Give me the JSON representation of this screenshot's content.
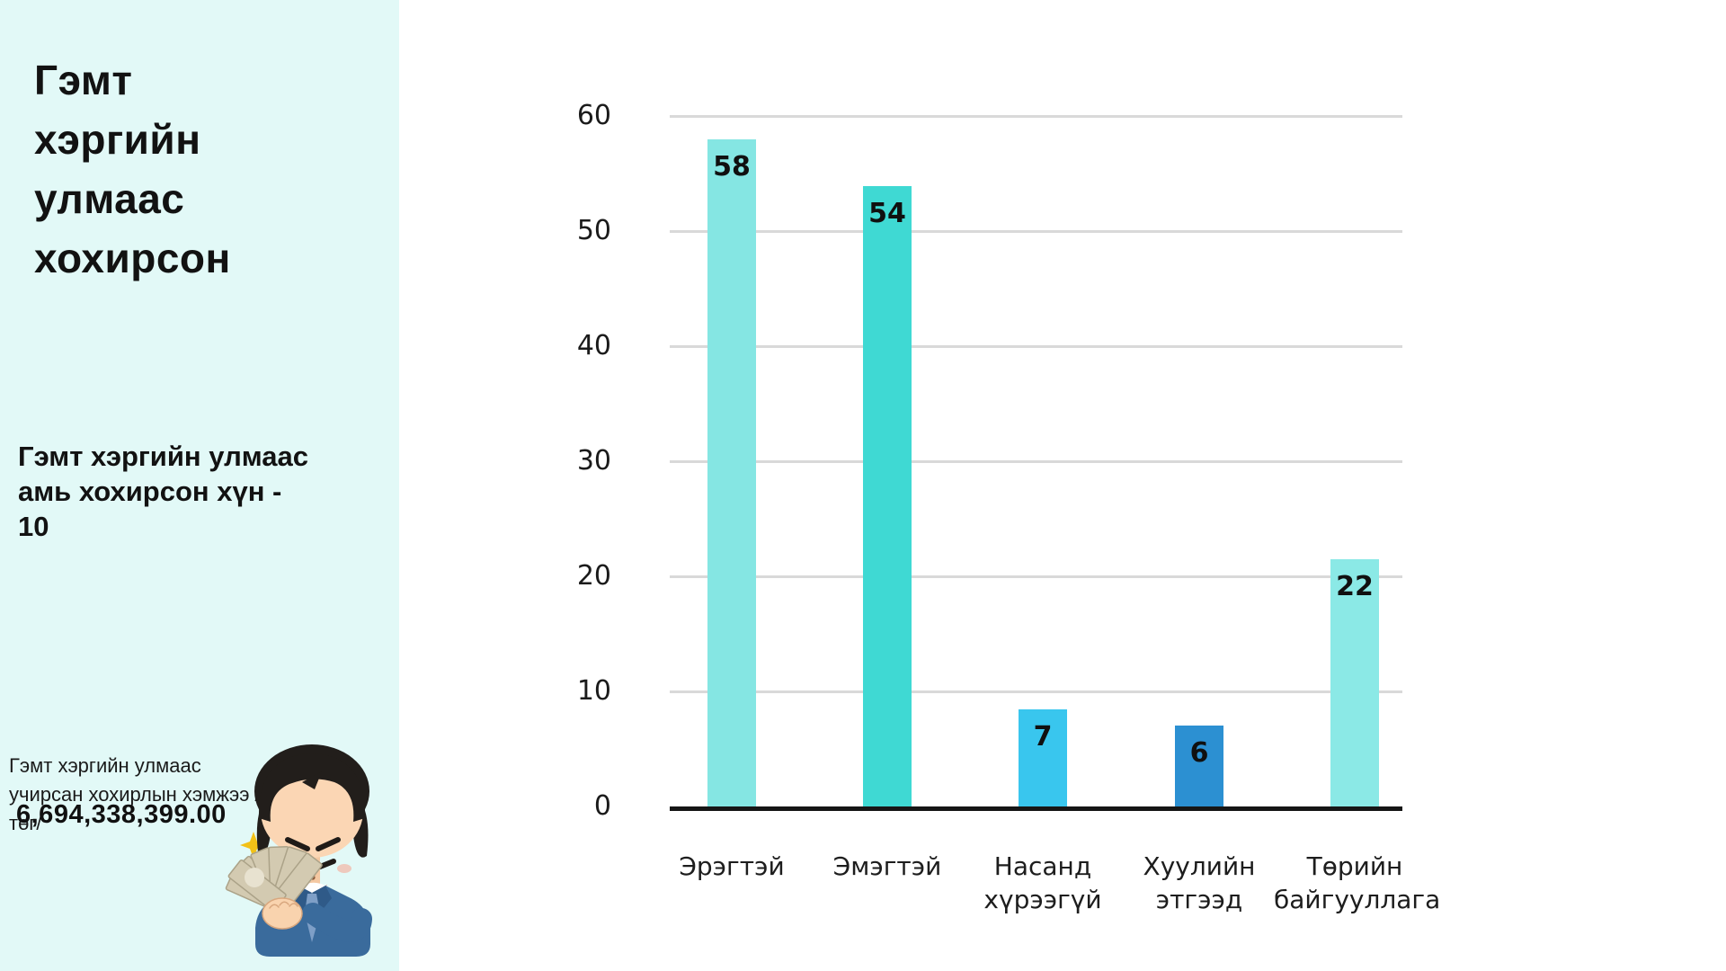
{
  "sidebar": {
    "background_color": "#E2F9F7",
    "title": "Гэмт хэргийн улмаас хохирсон",
    "subtitle": "Гэмт хэргийн улмаас амь хохирсон хүн - 10",
    "loss_label": "Гэмт хэргийн улмаас  учирсан хохирлын хэмжээ /төг/",
    "loss_amount": "6,694,338,399.00",
    "illustration": "man-counting-money-illustration"
  },
  "chart_data": {
    "type": "bar",
    "title": "",
    "xlabel": "",
    "ylabel": "",
    "categories": [
      "Эрэгтэй",
      "Эмэгтэй",
      "Насанд хүрээгүй",
      "Хуулийн этгээд",
      "Төрийн байгууллага"
    ],
    "values": [
      58,
      54,
      7,
      6,
      22
    ],
    "rendered_units": [
      58,
      53.9,
      8.4,
      7.0,
      21.5
    ],
    "bar_colors": [
      "#85E6E3",
      "#3FD9D3",
      "#39C6EE",
      "#2C90D2",
      "#8BE9E6"
    ],
    "y_ticks": [
      60,
      50,
      40,
      30,
      20,
      10,
      0
    ],
    "ylim": [
      0,
      60
    ],
    "grid": true,
    "gridline_color": "#D9D9D9",
    "axis_color": "#161616",
    "legend": false
  }
}
